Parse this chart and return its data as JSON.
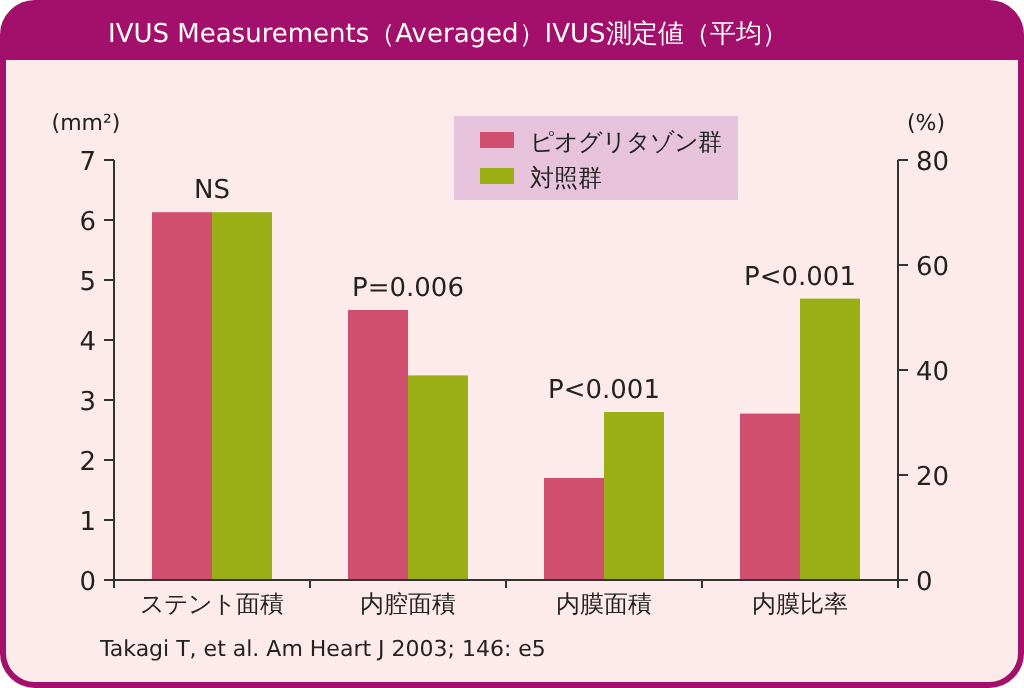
{
  "chart_data": {
    "type": "bar",
    "title": "IVUS Measurements（Averaged）IVUS測定値（平均）",
    "categories": [
      "ステント面積",
      "内腔面積",
      "内膜面積",
      "内膜比率"
    ],
    "series": [
      {
        "name": "ピオグリタゾン群",
        "color": "#d14f6e",
        "values": [
          6.13,
          4.5,
          1.7,
          null
        ]
      },
      {
        "name": "対照群",
        "color": "#9aaf15",
        "values": [
          6.13,
          3.41,
          2.8,
          null
        ]
      },
      {
        "color": "#d14f6e",
        "axis": "y2",
        "values": [
          null,
          null,
          null,
          31.7
        ]
      },
      {
        "color": "#9aaf15",
        "axis": "y2",
        "values": [
          null,
          null,
          null,
          53.6
        ]
      }
    ],
    "ylabel": "(mm²)",
    "y2label": "(%)",
    "ylim": [
      0,
      7
    ],
    "yticks": [
      0,
      1,
      2,
      3,
      4,
      5,
      6,
      7
    ],
    "y2lim": [
      0,
      80
    ],
    "y2ticks": [
      0,
      20,
      40,
      60,
      80
    ],
    "legend": "top",
    "annotations": [
      {
        "text": "NS",
        "x": "ステント面積",
        "y": 6.13
      },
      {
        "text": "P=0.006",
        "x": "内腔面積",
        "y": 4.5
      },
      {
        "text": "P<0.001",
        "x": "内膜面積",
        "y": 2.8
      },
      {
        "text": "P<0.001",
        "x": "内膜比率",
        "y": 4.69
      },
      "Takagi T, et al. Am Heart J 2003; 146: e5"
    ]
  }
}
